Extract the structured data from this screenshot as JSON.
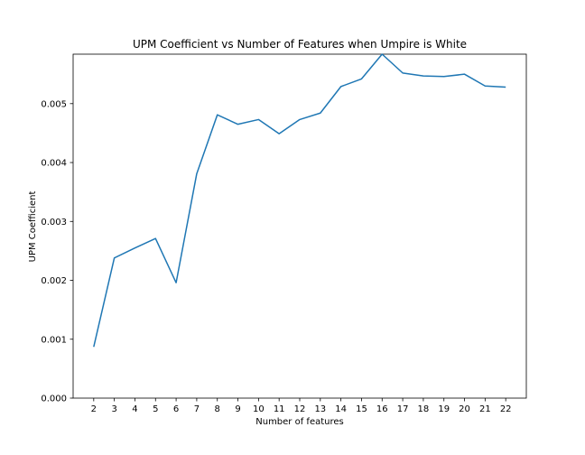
{
  "chart_data": {
    "type": "line",
    "title": "UPM Coefficient vs Number of Features when Umpire is White",
    "xlabel": "Number of features",
    "ylabel": "UPM Coefficient",
    "x": [
      2,
      3,
      4,
      5,
      6,
      7,
      8,
      9,
      10,
      11,
      12,
      13,
      14,
      15,
      16,
      17,
      18,
      19,
      20,
      21,
      22
    ],
    "x_tick_labels": [
      "2",
      "3",
      "4",
      "5",
      "6",
      "7",
      "8",
      "9",
      "10",
      "11",
      "12",
      "13",
      "14",
      "15",
      "16",
      "17",
      "18",
      "19",
      "20",
      "21",
      "22"
    ],
    "series": [
      {
        "color": "#1f77b4",
        "values": [
          0.00087,
          0.00238,
          0.00255,
          0.00271,
          0.00196,
          0.00381,
          0.00481,
          0.00465,
          0.00473,
          0.00449,
          0.00473,
          0.00484,
          0.00529,
          0.00542,
          0.00584,
          0.00552,
          0.00547,
          0.00546,
          0.0055,
          0.0053,
          0.00528
        ]
      }
    ],
    "y_ticks": [
      0.0,
      0.001,
      0.002,
      0.003,
      0.004,
      0.005
    ],
    "y_tick_labels": [
      "0.000",
      "0.001",
      "0.002",
      "0.003",
      "0.004",
      "0.005"
    ],
    "xlim": [
      1.0,
      23.0
    ],
    "ylim": [
      0.0,
      0.00584
    ],
    "grid": false,
    "legend": "none"
  }
}
